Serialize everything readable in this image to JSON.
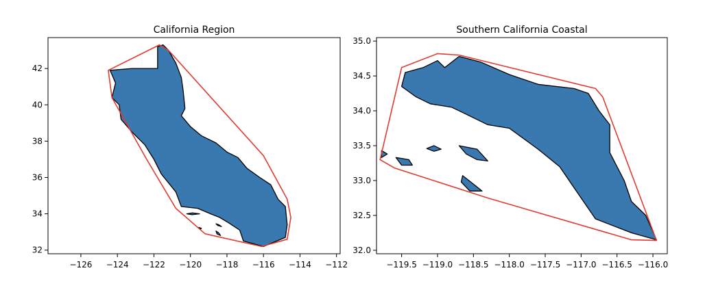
{
  "colors": {
    "land_fill": "#3a78b0",
    "land_edge": "#000000",
    "hull_edge": "#e03a2f",
    "background": "#ffffff"
  },
  "chart_data": [
    {
      "type": "map",
      "title": "California Region",
      "xlabel": "",
      "ylabel": "",
      "xlim": [
        -127.8,
        -111.8
      ],
      "ylim": [
        31.8,
        43.7
      ],
      "xticks": [
        -126,
        -124,
        -122,
        -120,
        -118,
        -116,
        -114,
        -112
      ],
      "xtick_labels": [
        "−126",
        "−124",
        "−122",
        "−120",
        "−118",
        "−116",
        "−114",
        "−112"
      ],
      "yticks": [
        32,
        34,
        36,
        38,
        40,
        42
      ],
      "ytick_labels": [
        "32",
        "34",
        "36",
        "38",
        "40",
        "42"
      ],
      "grid": false,
      "polygons": [
        {
          "role": "land",
          "points": [
            [
              -124.4,
              41.9
            ],
            [
              -123.2,
              42.0
            ],
            [
              -121.8,
              42.0
            ],
            [
              -121.8,
              43.2
            ],
            [
              -121.5,
              43.3
            ],
            [
              -121.2,
              43.0
            ],
            [
              -120.8,
              42.3
            ],
            [
              -120.5,
              41.5
            ],
            [
              -120.4,
              40.8
            ],
            [
              -120.3,
              39.8
            ],
            [
              -120.5,
              39.4
            ],
            [
              -120.0,
              38.8
            ],
            [
              -119.4,
              38.3
            ],
            [
              -118.6,
              37.9
            ],
            [
              -118.0,
              37.4
            ],
            [
              -117.4,
              37.1
            ],
            [
              -116.9,
              36.5
            ],
            [
              -116.2,
              36.0
            ],
            [
              -115.6,
              35.6
            ],
            [
              -115.2,
              34.8
            ],
            [
              -114.8,
              34.4
            ],
            [
              -114.7,
              33.4
            ],
            [
              -114.8,
              32.7
            ],
            [
              -116.0,
              32.2
            ],
            [
              -117.1,
              32.5
            ],
            [
              -117.3,
              33.1
            ],
            [
              -117.9,
              33.5
            ],
            [
              -118.4,
              33.8
            ],
            [
              -118.9,
              34.0
            ],
            [
              -119.6,
              34.3
            ],
            [
              -120.5,
              34.4
            ],
            [
              -120.8,
              35.2
            ],
            [
              -121.6,
              36.2
            ],
            [
              -122.0,
              37.0
            ],
            [
              -122.5,
              37.8
            ],
            [
              -123.2,
              38.5
            ],
            [
              -123.8,
              39.2
            ],
            [
              -123.9,
              40.0
            ],
            [
              -124.3,
              40.4
            ],
            [
              -124.1,
              41.2
            ]
          ]
        },
        {
          "role": "land",
          "points": [
            [
              -119.5,
              34.0
            ],
            [
              -119.9,
              34.05
            ],
            [
              -120.2,
              34.0
            ],
            [
              -119.9,
              33.95
            ]
          ]
        },
        {
          "role": "land",
          "points": [
            [
              -118.6,
              33.45
            ],
            [
              -118.45,
              33.4
            ],
            [
              -118.3,
              33.3
            ],
            [
              -118.5,
              33.35
            ]
          ]
        },
        {
          "role": "land",
          "points": [
            [
              -118.6,
              33.05
            ],
            [
              -118.45,
              32.95
            ],
            [
              -118.35,
              32.8
            ],
            [
              -118.55,
              32.9
            ]
          ]
        },
        {
          "role": "land",
          "points": [
            [
              -119.55,
              33.25
            ],
            [
              -119.4,
              33.2
            ],
            [
              -119.45,
              33.15
            ]
          ]
        },
        {
          "role": "hull",
          "points": [
            [
              -124.5,
              41.9
            ],
            [
              -121.7,
              43.3
            ],
            [
              -121.2,
              43.0
            ],
            [
              -116.0,
              37.2
            ],
            [
              -114.7,
              34.8
            ],
            [
              -114.5,
              33.8
            ],
            [
              -114.7,
              32.6
            ],
            [
              -116.1,
              32.2
            ],
            [
              -119.2,
              32.9
            ],
            [
              -120.8,
              34.3
            ],
            [
              -122.4,
              37.0
            ],
            [
              -124.3,
              40.4
            ]
          ]
        }
      ]
    },
    {
      "type": "map",
      "title": "Southern California Coastal",
      "xlabel": "",
      "ylabel": "",
      "xlim": [
        -119.85,
        -115.8
      ],
      "ylim": [
        31.95,
        35.05
      ],
      "xticks": [
        -119.5,
        -119.0,
        -118.5,
        -118.0,
        -117.5,
        -117.0,
        -116.5,
        -116.0
      ],
      "xtick_labels": [
        "−119.5",
        "−119.0",
        "−118.5",
        "−118.0",
        "−117.5",
        "−117.0",
        "−116.5",
        "−116.0"
      ],
      "yticks": [
        32.0,
        32.5,
        33.0,
        33.5,
        34.0,
        34.5,
        35.0
      ],
      "ytick_labels": [
        "32.0",
        "32.5",
        "33.0",
        "33.5",
        "34.0",
        "34.5",
        "35.0"
      ],
      "grid": false,
      "polygons": [
        {
          "role": "land",
          "points": [
            [
              -119.5,
              34.35
            ],
            [
              -119.45,
              34.55
            ],
            [
              -119.2,
              34.62
            ],
            [
              -119.0,
              34.72
            ],
            [
              -118.9,
              34.62
            ],
            [
              -118.7,
              34.78
            ],
            [
              -118.4,
              34.7
            ],
            [
              -118.0,
              34.52
            ],
            [
              -117.6,
              34.38
            ],
            [
              -117.1,
              34.32
            ],
            [
              -116.9,
              34.25
            ],
            [
              -116.75,
              34.0
            ],
            [
              -116.6,
              33.8
            ],
            [
              -116.6,
              33.4
            ],
            [
              -116.4,
              33.0
            ],
            [
              -116.3,
              32.7
            ],
            [
              -116.1,
              32.5
            ],
            [
              -115.95,
              32.15
            ],
            [
              -116.3,
              32.25
            ],
            [
              -116.8,
              32.45
            ],
            [
              -117.1,
              32.9
            ],
            [
              -117.3,
              33.2
            ],
            [
              -117.6,
              33.45
            ],
            [
              -118.0,
              33.75
            ],
            [
              -118.3,
              33.8
            ],
            [
              -118.6,
              33.95
            ],
            [
              -118.8,
              34.05
            ],
            [
              -119.1,
              34.1
            ],
            [
              -119.3,
              34.2
            ]
          ]
        },
        {
          "role": "land",
          "points": [
            [
              -119.05,
              33.5
            ],
            [
              -118.95,
              33.45
            ],
            [
              -119.05,
              33.42
            ],
            [
              -119.15,
              33.46
            ]
          ]
        },
        {
          "role": "land",
          "points": [
            [
              -118.7,
              33.5
            ],
            [
              -118.45,
              33.45
            ],
            [
              -118.3,
              33.28
            ],
            [
              -118.45,
              33.3
            ],
            [
              -118.6,
              33.38
            ]
          ]
        },
        {
          "role": "land",
          "points": [
            [
              -118.65,
              33.07
            ],
            [
              -118.5,
              32.95
            ],
            [
              -118.38,
              32.85
            ],
            [
              -118.55,
              32.85
            ],
            [
              -118.67,
              32.98
            ]
          ]
        },
        {
          "role": "land",
          "points": [
            [
              -119.58,
              33.33
            ],
            [
              -119.4,
              33.3
            ],
            [
              -119.35,
              33.22
            ],
            [
              -119.5,
              33.22
            ]
          ]
        },
        {
          "role": "land",
          "points": [
            [
              -119.78,
              33.43
            ],
            [
              -119.7,
              33.38
            ],
            [
              -119.78,
              33.33
            ]
          ]
        },
        {
          "role": "hull",
          "points": [
            [
              -119.5,
              34.62
            ],
            [
              -119.0,
              34.82
            ],
            [
              -118.7,
              34.8
            ],
            [
              -116.8,
              34.32
            ],
            [
              -116.7,
              34.2
            ],
            [
              -115.95,
              32.14
            ],
            [
              -116.3,
              32.15
            ],
            [
              -118.3,
              32.75
            ],
            [
              -119.6,
              33.18
            ],
            [
              -119.8,
              33.3
            ]
          ]
        }
      ]
    }
  ]
}
